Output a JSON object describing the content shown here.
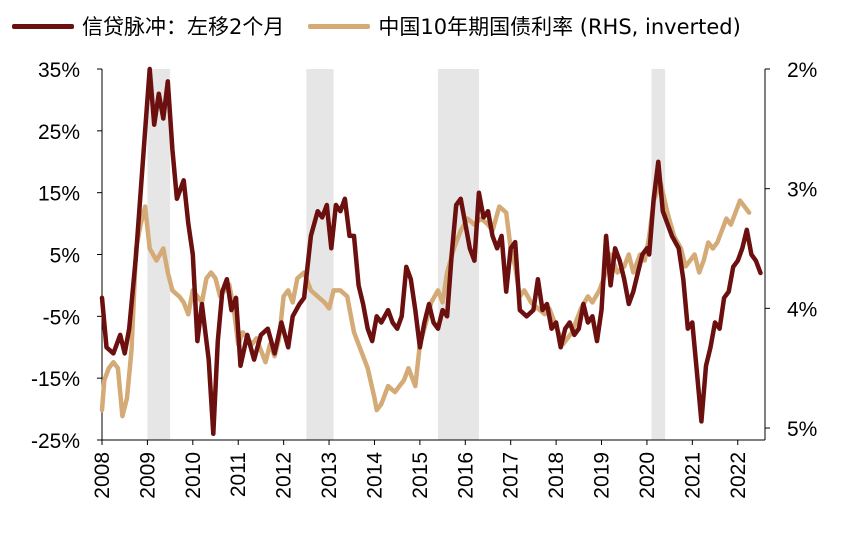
{
  "chart_data": {
    "type": "line",
    "x_range": [
      2008.0,
      2022.6
    ],
    "bands": [
      [
        2009.0,
        2009.5
      ],
      [
        2012.5,
        2013.1
      ],
      [
        2015.4,
        2016.3
      ],
      [
        2020.1,
        2020.4
      ]
    ],
    "band_color": "#e6e6e6",
    "left_axis": {
      "ticks": [
        35,
        25,
        15,
        5,
        -5,
        -15,
        -25
      ],
      "tick_labels": [
        "35%",
        "25%",
        "15%",
        "5%",
        "-5%",
        "-15%",
        "-25%"
      ],
      "range": [
        -25,
        35
      ]
    },
    "right_axis": {
      "inverted": true,
      "ticks": [
        2,
        3,
        4,
        5
      ],
      "tick_labels": [
        "2%",
        "3%",
        "4%",
        "5%"
      ],
      "range": [
        2,
        5.1
      ]
    },
    "x_ticks": [
      2008,
      2009,
      2010,
      2011,
      2012,
      2013,
      2014,
      2015,
      2016,
      2017,
      2018,
      2019,
      2020,
      2021,
      2022
    ],
    "x_tick_labels": [
      "2008",
      "2009",
      "2010",
      "2011",
      "2012",
      "2013",
      "2014",
      "2015",
      "2016",
      "2017",
      "2018",
      "2019",
      "2020",
      "2021",
      "2022"
    ],
    "series": [
      {
        "name": "信贷脉冲：左移2个月",
        "axis": "left",
        "color": "#6b0f0f",
        "points": [
          [
            2008.0,
            -2
          ],
          [
            2008.1,
            -10
          ],
          [
            2008.25,
            -11
          ],
          [
            2008.4,
            -8
          ],
          [
            2008.5,
            -11
          ],
          [
            2008.6,
            -7
          ],
          [
            2008.75,
            5
          ],
          [
            2008.85,
            15
          ],
          [
            2008.95,
            25
          ],
          [
            2009.05,
            35
          ],
          [
            2009.15,
            26
          ],
          [
            2009.25,
            31
          ],
          [
            2009.35,
            27
          ],
          [
            2009.45,
            33
          ],
          [
            2009.55,
            22
          ],
          [
            2009.65,
            14
          ],
          [
            2009.8,
            17
          ],
          [
            2009.9,
            10
          ],
          [
            2010.0,
            5
          ],
          [
            2010.1,
            -9
          ],
          [
            2010.2,
            -3
          ],
          [
            2010.35,
            -12
          ],
          [
            2010.45,
            -24
          ],
          [
            2010.55,
            -9
          ],
          [
            2010.65,
            -1
          ],
          [
            2010.75,
            1
          ],
          [
            2010.85,
            -4
          ],
          [
            2010.95,
            -2
          ],
          [
            2011.05,
            -13
          ],
          [
            2011.2,
            -8
          ],
          [
            2011.35,
            -12
          ],
          [
            2011.5,
            -8
          ],
          [
            2011.65,
            -7
          ],
          [
            2011.8,
            -11
          ],
          [
            2011.95,
            -6
          ],
          [
            2012.1,
            -10
          ],
          [
            2012.2,
            -5
          ],
          [
            2012.35,
            -3
          ],
          [
            2012.45,
            -2
          ],
          [
            2012.6,
            8
          ],
          [
            2012.75,
            12
          ],
          [
            2012.85,
            11
          ],
          [
            2012.95,
            13
          ],
          [
            2013.05,
            6
          ],
          [
            2013.15,
            13
          ],
          [
            2013.25,
            12
          ],
          [
            2013.35,
            14
          ],
          [
            2013.45,
            8
          ],
          [
            2013.55,
            8
          ],
          [
            2013.65,
            0
          ],
          [
            2013.75,
            -3
          ],
          [
            2013.85,
            -7
          ],
          [
            2013.95,
            -9
          ],
          [
            2014.05,
            -5
          ],
          [
            2014.15,
            -6
          ],
          [
            2014.3,
            -4
          ],
          [
            2014.4,
            -6
          ],
          [
            2014.5,
            -7
          ],
          [
            2014.6,
            -5
          ],
          [
            2014.7,
            3
          ],
          [
            2014.8,
            1
          ],
          [
            2014.9,
            -4
          ],
          [
            2015.0,
            -10
          ],
          [
            2015.1,
            -6
          ],
          [
            2015.2,
            -3
          ],
          [
            2015.3,
            -6
          ],
          [
            2015.4,
            -7
          ],
          [
            2015.5,
            -4
          ],
          [
            2015.6,
            -5
          ],
          [
            2015.7,
            5
          ],
          [
            2015.8,
            13
          ],
          [
            2015.9,
            14
          ],
          [
            2016.0,
            10
          ],
          [
            2016.1,
            6
          ],
          [
            2016.2,
            4
          ],
          [
            2016.3,
            15
          ],
          [
            2016.4,
            11
          ],
          [
            2016.5,
            12
          ],
          [
            2016.6,
            8
          ],
          [
            2016.7,
            6
          ],
          [
            2016.8,
            8
          ],
          [
            2016.9,
            -1
          ],
          [
            2017.0,
            6
          ],
          [
            2017.1,
            7
          ],
          [
            2017.2,
            -4
          ],
          [
            2017.35,
            -5
          ],
          [
            2017.5,
            -4
          ],
          [
            2017.6,
            1
          ],
          [
            2017.7,
            -4
          ],
          [
            2017.8,
            -3
          ],
          [
            2017.9,
            -7
          ],
          [
            2018.0,
            -6
          ],
          [
            2018.1,
            -10
          ],
          [
            2018.2,
            -7
          ],
          [
            2018.3,
            -6
          ],
          [
            2018.4,
            -8
          ],
          [
            2018.5,
            -7
          ],
          [
            2018.6,
            -3
          ],
          [
            2018.7,
            -6
          ],
          [
            2018.8,
            -5
          ],
          [
            2018.9,
            -9
          ],
          [
            2019.0,
            -4
          ],
          [
            2019.1,
            8
          ],
          [
            2019.2,
            0
          ],
          [
            2019.3,
            6
          ],
          [
            2019.4,
            4
          ],
          [
            2019.5,
            1
          ],
          [
            2019.6,
            -3
          ],
          [
            2019.7,
            -1
          ],
          [
            2019.8,
            2
          ],
          [
            2019.9,
            5
          ],
          [
            2020.0,
            6
          ],
          [
            2020.05,
            5
          ],
          [
            2020.15,
            14
          ],
          [
            2020.25,
            20
          ],
          [
            2020.35,
            12
          ],
          [
            2020.45,
            10
          ],
          [
            2020.55,
            8
          ],
          [
            2020.7,
            6
          ],
          [
            2020.8,
            1
          ],
          [
            2020.9,
            -7
          ],
          [
            2021.0,
            -6
          ],
          [
            2021.1,
            -14
          ],
          [
            2021.2,
            -22
          ],
          [
            2021.3,
            -13
          ],
          [
            2021.4,
            -10
          ],
          [
            2021.5,
            -6
          ],
          [
            2021.6,
            -7
          ],
          [
            2021.7,
            -2
          ],
          [
            2021.8,
            -1
          ],
          [
            2021.9,
            3
          ],
          [
            2022.0,
            4
          ],
          [
            2022.1,
            6
          ],
          [
            2022.2,
            9
          ],
          [
            2022.3,
            5
          ],
          [
            2022.4,
            4
          ],
          [
            2022.5,
            2
          ]
        ]
      },
      {
        "name": "中国10年期国债利率 (RHS, inverted)",
        "axis": "right",
        "color": "#d4aa76",
        "points": [
          [
            2008.0,
            4.85
          ],
          [
            2008.05,
            4.6
          ],
          [
            2008.15,
            4.5
          ],
          [
            2008.25,
            4.45
          ],
          [
            2008.35,
            4.5
          ],
          [
            2008.45,
            4.9
          ],
          [
            2008.55,
            4.75
          ],
          [
            2008.65,
            4.35
          ],
          [
            2008.75,
            3.5
          ],
          [
            2008.85,
            3.3
          ],
          [
            2008.95,
            3.15
          ],
          [
            2009.05,
            3.5
          ],
          [
            2009.2,
            3.6
          ],
          [
            2009.35,
            3.5
          ],
          [
            2009.45,
            3.7
          ],
          [
            2009.55,
            3.85
          ],
          [
            2009.7,
            3.9
          ],
          [
            2009.8,
            3.95
          ],
          [
            2009.9,
            4.05
          ],
          [
            2010.0,
            3.85
          ],
          [
            2010.1,
            3.9
          ],
          [
            2010.2,
            3.95
          ],
          [
            2010.3,
            3.75
          ],
          [
            2010.4,
            3.7
          ],
          [
            2010.5,
            3.75
          ],
          [
            2010.6,
            3.9
          ],
          [
            2010.7,
            3.85
          ],
          [
            2010.8,
            3.8
          ],
          [
            2010.9,
            4.0
          ],
          [
            2011.0,
            4.3
          ],
          [
            2011.1,
            4.2
          ],
          [
            2011.2,
            4.25
          ],
          [
            2011.3,
            4.3
          ],
          [
            2011.4,
            4.25
          ],
          [
            2011.5,
            4.35
          ],
          [
            2011.6,
            4.45
          ],
          [
            2011.7,
            4.3
          ],
          [
            2011.8,
            4.4
          ],
          [
            2011.9,
            4.25
          ],
          [
            2012.0,
            3.9
          ],
          [
            2012.1,
            3.85
          ],
          [
            2012.2,
            3.95
          ],
          [
            2012.3,
            3.75
          ],
          [
            2012.45,
            3.7
          ],
          [
            2012.6,
            3.85
          ],
          [
            2012.75,
            3.9
          ],
          [
            2012.9,
            3.95
          ],
          [
            2013.0,
            4.0
          ],
          [
            2013.1,
            3.85
          ],
          [
            2013.25,
            3.85
          ],
          [
            2013.4,
            3.9
          ],
          [
            2013.55,
            4.2
          ],
          [
            2013.7,
            4.35
          ],
          [
            2013.85,
            4.5
          ],
          [
            2014.0,
            4.75
          ],
          [
            2014.05,
            4.85
          ],
          [
            2014.15,
            4.8
          ],
          [
            2014.3,
            4.65
          ],
          [
            2014.45,
            4.7
          ],
          [
            2014.55,
            4.65
          ],
          [
            2014.65,
            4.6
          ],
          [
            2014.75,
            4.5
          ],
          [
            2014.9,
            4.65
          ],
          [
            2015.0,
            4.3
          ],
          [
            2015.15,
            4.1
          ],
          [
            2015.25,
            3.95
          ],
          [
            2015.4,
            3.85
          ],
          [
            2015.5,
            3.95
          ],
          [
            2015.6,
            3.7
          ],
          [
            2015.75,
            3.5
          ],
          [
            2015.9,
            3.35
          ],
          [
            2016.05,
            3.25
          ],
          [
            2016.2,
            3.3
          ],
          [
            2016.35,
            3.25
          ],
          [
            2016.5,
            3.3
          ],
          [
            2016.6,
            3.35
          ],
          [
            2016.75,
            3.15
          ],
          [
            2016.9,
            3.2
          ],
          [
            2017.0,
            3.5
          ],
          [
            2017.1,
            3.65
          ],
          [
            2017.2,
            3.9
          ],
          [
            2017.3,
            3.85
          ],
          [
            2017.45,
            3.95
          ],
          [
            2017.6,
            4.0
          ],
          [
            2017.75,
            4.05
          ],
          [
            2017.85,
            4.0
          ],
          [
            2017.95,
            4.1
          ],
          [
            2018.05,
            4.2
          ],
          [
            2018.15,
            4.3
          ],
          [
            2018.25,
            4.25
          ],
          [
            2018.35,
            4.2
          ],
          [
            2018.45,
            4.1
          ],
          [
            2018.55,
            4.0
          ],
          [
            2018.7,
            3.9
          ],
          [
            2018.8,
            3.95
          ],
          [
            2018.95,
            3.85
          ],
          [
            2019.05,
            3.75
          ],
          [
            2019.2,
            3.55
          ],
          [
            2019.35,
            3.7
          ],
          [
            2019.5,
            3.65
          ],
          [
            2019.6,
            3.55
          ],
          [
            2019.7,
            3.7
          ],
          [
            2019.85,
            3.55
          ],
          [
            2019.95,
            3.6
          ],
          [
            2020.05,
            3.4
          ],
          [
            2020.15,
            3.1
          ],
          [
            2020.3,
            2.95
          ],
          [
            2020.45,
            3.2
          ],
          [
            2020.6,
            3.4
          ],
          [
            2020.75,
            3.5
          ],
          [
            2020.85,
            3.65
          ],
          [
            2020.95,
            3.6
          ],
          [
            2021.05,
            3.55
          ],
          [
            2021.15,
            3.7
          ],
          [
            2021.25,
            3.6
          ],
          [
            2021.35,
            3.45
          ],
          [
            2021.45,
            3.5
          ],
          [
            2021.55,
            3.45
          ],
          [
            2021.65,
            3.35
          ],
          [
            2021.75,
            3.25
          ],
          [
            2021.85,
            3.3
          ],
          [
            2021.95,
            3.2
          ],
          [
            2022.05,
            3.1
          ],
          [
            2022.15,
            3.15
          ],
          [
            2022.25,
            3.2
          ]
        ]
      }
    ]
  }
}
